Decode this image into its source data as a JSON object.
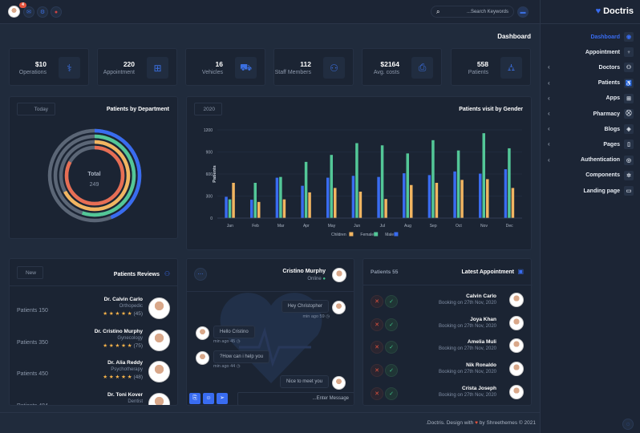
{
  "topbar": {
    "notification_count": "4",
    "search_placeholder": "...Search Keywords"
  },
  "brand": {
    "name": "Doctris"
  },
  "page_title": "Dashboard",
  "stats": [
    {
      "value": "$10",
      "label": "Operations",
      "icon": "operation-icon"
    },
    {
      "value": "220",
      "label": "Appointment",
      "icon": "briefcase-medical-icon"
    },
    {
      "value": "16",
      "label": "Vehicles",
      "icon": "ambulance-icon"
    },
    {
      "value": "112",
      "label": "Staff Members",
      "icon": "staff-icon"
    },
    {
      "value": "$2164",
      "label": "Avg. costs",
      "icon": "invoice-icon"
    },
    {
      "value": "558",
      "label": "Patients",
      "icon": "bed-icon"
    }
  ],
  "sidebar": {
    "items": [
      {
        "label": "Dashboard",
        "icon": "dashboard-icon",
        "active": true,
        "submenu": false
      },
      {
        "label": "Appointment",
        "icon": "stethoscope-icon",
        "submenu": false
      },
      {
        "label": "Doctors",
        "icon": "user-icon",
        "submenu": true
      },
      {
        "label": "Patients",
        "icon": "wheelchair-icon",
        "submenu": true
      },
      {
        "label": "Apps",
        "icon": "apps-icon",
        "submenu": true
      },
      {
        "label": "Pharmacy",
        "icon": "cart-icon",
        "submenu": true
      },
      {
        "label": "Blogs",
        "icon": "blog-icon",
        "submenu": true
      },
      {
        "label": "Pages",
        "icon": "file-icon",
        "submenu": true
      },
      {
        "label": "Authentication",
        "icon": "login-icon",
        "submenu": true
      },
      {
        "label": "Components",
        "icon": "components-icon",
        "submenu": false
      },
      {
        "label": "Landing page",
        "icon": "browser-icon",
        "submenu": false
      }
    ]
  },
  "department": {
    "title": "Patients by Department",
    "filter": "Today",
    "total_label": "Total",
    "total_value": "249"
  },
  "chart_data": [
    {
      "type": "radialBar",
      "title": "Patients by Department",
      "values": [
        44,
        55,
        67,
        83
      ],
      "colors": [
        "#396cf0",
        "#53c797",
        "#f1b561",
        "#e76e54"
      ],
      "track_color": "#5b6676"
    },
    {
      "type": "bar",
      "title": "Patients visit by Gender",
      "ylabel": "Patients",
      "ylim": [
        0,
        1200
      ],
      "yticks": [
        0,
        300,
        600,
        900,
        1200
      ],
      "grid": true,
      "legend": "bottom",
      "categories": [
        "Jan",
        "Feb",
        "Mar",
        "Apr",
        "May",
        "Jun",
        "Jul",
        "Aug",
        "Sep",
        "Oct",
        "Nov",
        "Dec"
      ],
      "series": [
        {
          "name": "Male",
          "color": "#396cf0",
          "values": [
            290,
            250,
            550,
            440,
            550,
            575,
            560,
            610,
            585,
            635,
            605,
            665
          ]
        },
        {
          "name": "Female",
          "color": "#53c797",
          "values": [
            255,
            480,
            560,
            765,
            860,
            1020,
            990,
            880,
            1060,
            920,
            1155,
            950
          ]
        },
        {
          "name": "Children",
          "color": "#f1b561",
          "values": [
            480,
            220,
            255,
            350,
            410,
            360,
            260,
            450,
            480,
            520,
            530,
            410
          ]
        }
      ]
    }
  ],
  "gender_chart": {
    "filter": "2020",
    "legend": [
      "Children",
      "Female",
      "Male"
    ]
  },
  "reviews": {
    "title": "Patients Reviews",
    "filter": "New",
    "items": [
      {
        "patients": "Patients 150",
        "name": "Dr. Calvin Carlo",
        "specialty": "Orthopedic",
        "count": "(45)",
        "rating": 5
      },
      {
        "patients": "Patients 350",
        "name": "Dr. Cristino Murphy",
        "specialty": "Gynecology",
        "count": "(75)",
        "rating": 5
      },
      {
        "patients": "Patients 450",
        "name": "Dr. Alia Reddy",
        "specialty": "Psychotherapy",
        "count": "(48)",
        "rating": 5
      },
      {
        "patients": "Patients 484",
        "name": "Dr. Toni Kover",
        "specialty": "Dentist"
      }
    ]
  },
  "chat": {
    "name": "Cristino Murphy",
    "status": "Online",
    "input_placeholder": "...Enter Message",
    "messages": [
      {
        "text": "Hey Christopher",
        "time": "min ago 59",
        "side": "right"
      },
      {
        "text": "Hello Cristino",
        "time": "min ago 45",
        "side": "left"
      },
      {
        "text": "?How can i help you",
        "time": "min ago 44",
        "side": "left"
      },
      {
        "text": "Nice to meet you",
        "side": "right"
      }
    ]
  },
  "appointments": {
    "title": "Latest Appointment",
    "count_label": "Patients 55",
    "items": [
      {
        "name": "Calvin Carlo",
        "date": "Booking on 27th Nov, 2020"
      },
      {
        "name": "Joya Khan",
        "date": "Booking on 27th Nov, 2020"
      },
      {
        "name": "Amelia Muli",
        "date": "Booking on 27th Nov, 2020"
      },
      {
        "name": "Nik Ronaldo",
        "date": "Booking on 27th Nov, 2020"
      },
      {
        "name": "Crista Joseph",
        "date": "Booking on 27th Nov, 2020"
      }
    ]
  },
  "footer": {
    "before": ".Doctris. Design with",
    "after": "by Shreethemes © 2021"
  },
  "colors": {
    "accent": "#396cf0",
    "danger": "#e5533d",
    "success": "#3fc38a",
    "star": "#f7b34a"
  }
}
